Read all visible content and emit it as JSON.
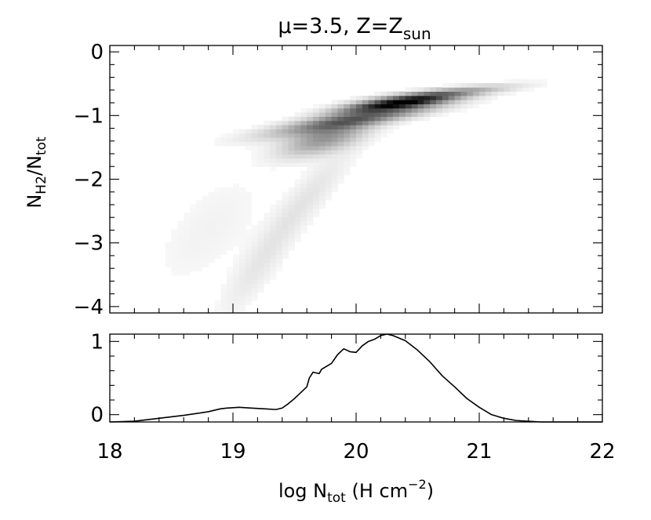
{
  "title": {
    "prefix": "μ=3.5,  Z=Z",
    "subscript": "sun"
  },
  "colors": {
    "ink": "#000000",
    "background": "#ffffff",
    "density_scale": "grayscale (white = low, black = high)"
  },
  "chart_data": [
    {
      "type": "heatmap",
      "panel": "top",
      "xlim": [
        18,
        22
      ],
      "ylim": [
        -4.1,
        0.1
      ],
      "xticks": [
        18,
        19,
        20,
        21,
        22
      ],
      "yticks": [
        0,
        -1,
        -2,
        -3,
        -4
      ],
      "ytick_labels": [
        "0",
        "−1",
        "−2",
        "−3",
        "−4"
      ],
      "ylabel": {
        "base": "N",
        "sub1": "H2",
        "slash": "/N",
        "sub2": "tot"
      },
      "grid": false,
      "density_components": [
        {
          "x": 20.35,
          "y": -0.8,
          "sx": 0.28,
          "sy": 0.09,
          "rho": 0.75,
          "w": 1.0
        },
        {
          "x": 20.0,
          "y": -1.05,
          "sx": 0.42,
          "sy": 0.16,
          "rho": 0.85,
          "w": 0.55
        },
        {
          "x": 19.75,
          "y": -1.35,
          "sx": 0.22,
          "sy": 0.18,
          "rho": 0.6,
          "w": 0.35
        },
        {
          "x": 20.7,
          "y": -0.65,
          "sx": 0.35,
          "sy": 0.08,
          "rho": 0.8,
          "w": 0.3
        },
        {
          "x": 19.6,
          "y": -2.3,
          "sx": 0.25,
          "sy": 0.55,
          "rho": 0.9,
          "w": 0.06
        },
        {
          "x": 19.2,
          "y": -3.4,
          "sx": 0.2,
          "sy": 0.5,
          "rho": 0.85,
          "w": 0.05
        },
        {
          "x": 18.8,
          "y": -2.8,
          "sx": 0.3,
          "sy": 0.6,
          "rho": 0.6,
          "w": 0.025
        }
      ]
    },
    {
      "type": "line",
      "panel": "bottom",
      "xlim": [
        18,
        22
      ],
      "ylim": [
        -0.1,
        1.1
      ],
      "xticks": [
        18,
        19,
        20,
        21,
        22
      ],
      "yticks": [
        0,
        1
      ],
      "ytick_labels": [
        "0",
        "1"
      ],
      "xlabel": {
        "prefix": "log N",
        "sub": "tot",
        "mid": " (H cm",
        "sup": "−2",
        "suffix": ")"
      },
      "grid": false,
      "series": [
        {
          "x": [
            18.0,
            18.2,
            18.4,
            18.6,
            18.8,
            18.9,
            18.95,
            19.05,
            19.15,
            19.25,
            19.35,
            19.4,
            19.45,
            19.5,
            19.55,
            19.6,
            19.62,
            19.65,
            19.7,
            19.72,
            19.8,
            19.85,
            19.9,
            19.95,
            20.0,
            20.05,
            20.1,
            20.15,
            20.2,
            20.25,
            20.3,
            20.4,
            20.5,
            20.6,
            20.7,
            20.8,
            20.9,
            21.0,
            21.1,
            21.2,
            21.3,
            21.5,
            21.7,
            22.0
          ],
          "y": [
            -0.1,
            -0.09,
            -0.05,
            -0.01,
            0.04,
            0.08,
            0.09,
            0.1,
            0.09,
            0.08,
            0.07,
            0.09,
            0.15,
            0.22,
            0.3,
            0.38,
            0.5,
            0.58,
            0.56,
            0.62,
            0.7,
            0.82,
            0.9,
            0.86,
            0.85,
            0.94,
            1.0,
            1.03,
            1.08,
            1.1,
            1.08,
            1.01,
            0.88,
            0.72,
            0.53,
            0.38,
            0.22,
            0.1,
            0.0,
            -0.05,
            -0.08,
            -0.1,
            -0.1,
            -0.1
          ]
        }
      ]
    }
  ]
}
